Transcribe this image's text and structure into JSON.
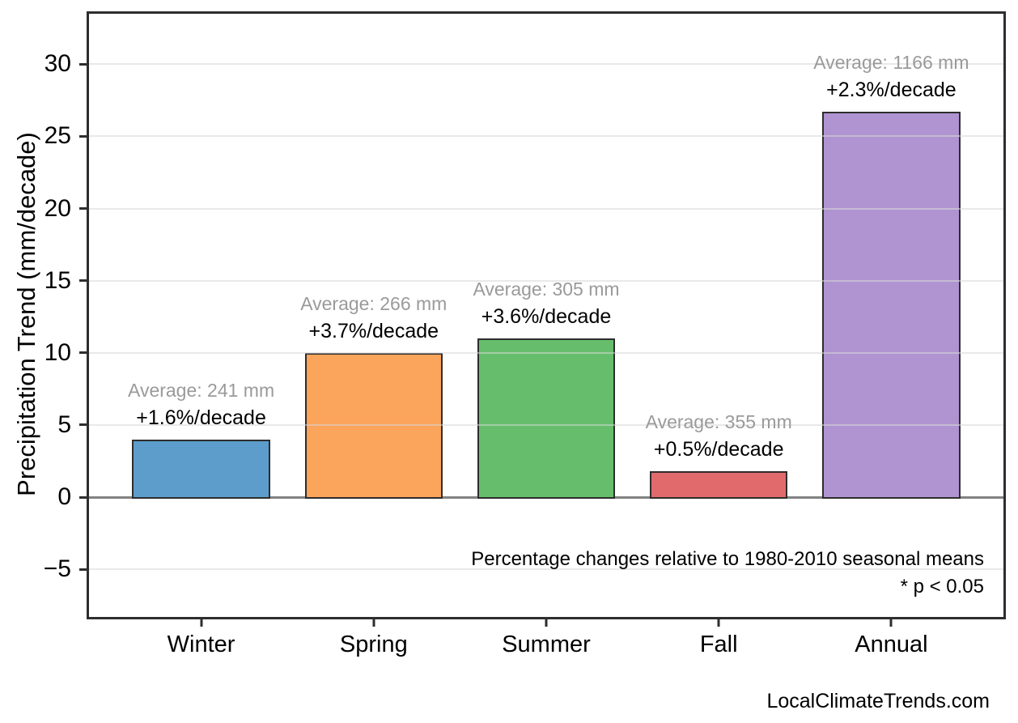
{
  "chart_data": {
    "type": "bar",
    "title": "",
    "xlabel": "",
    "ylabel": "Precipitation Trend (mm/decade)",
    "ylim": [
      -8.3,
      33.5
    ],
    "yticks": [
      -5,
      0,
      5,
      10,
      15,
      20,
      25,
      30
    ],
    "grid": "horizontal gridlines at every 5 units, drawn light over bars",
    "legend_position": "none",
    "categories": [
      "Winter",
      "Spring",
      "Summer",
      "Fall",
      "Annual"
    ],
    "values": [
      4.0,
      10.0,
      11.0,
      1.8,
      26.7
    ],
    "bar_colors": [
      "#5C9DCB",
      "#FBA45B",
      "#66BE6C",
      "#E16A6D",
      "#B094D1"
    ],
    "bar_edge_color": "#2d2d2d",
    "annotations": [
      {
        "average": "Average: 241 mm",
        "trend": "+1.6%/decade"
      },
      {
        "average": "Average: 266 mm",
        "trend": "+3.7%/decade"
      },
      {
        "average": "Average: 305 mm",
        "trend": "+3.6%/decade"
      },
      {
        "average": "Average: 355 mm",
        "trend": "+0.5%/decade"
      },
      {
        "average": "Average: 1166 mm",
        "trend": "+2.3%/decade"
      }
    ],
    "notes": [
      "Percentage changes relative to 1980-2010 seasonal means",
      "* p < 0.05"
    ],
    "footer": "LocalClimateTrends.com",
    "colors": {
      "annotation_average_text": "#9a9a9a",
      "annotation_trend_text": "#000000",
      "zero_line": "#828282",
      "axis_border": "#2e2e2e",
      "background": "#ffffff"
    }
  }
}
